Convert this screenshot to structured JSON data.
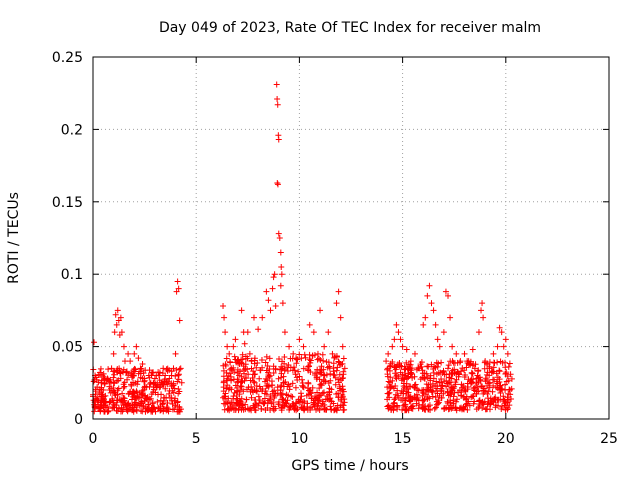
{
  "chart_data": {
    "type": "scatter",
    "title": "Day 049 of 2023, Rate Of TEC Index for receiver malm",
    "xlabel": "GPS time / hours",
    "ylabel": "ROTI / TECUs",
    "xlim": [
      0,
      25
    ],
    "ylim": [
      0,
      0.25
    ],
    "xticks": [
      "0",
      "5",
      "10",
      "15",
      "20",
      "25"
    ],
    "yticks": [
      "0",
      "0.05",
      "0.1",
      "0.15",
      "0.2",
      "0.25"
    ],
    "xtick_values": [
      0,
      5,
      10,
      15,
      20,
      25
    ],
    "ytick_values": [
      0,
      0.05,
      0.1,
      0.15,
      0.2,
      0.25
    ],
    "grid": true,
    "marker": "+",
    "color": "#ff0000",
    "series": [
      {
        "points": [
          [
            0.05,
            0.053
          ],
          [
            0.1,
            0.03
          ],
          [
            0.2,
            0.022
          ],
          [
            0.3,
            0.018
          ],
          [
            0.4,
            0.025
          ],
          [
            0.5,
            0.02
          ],
          [
            0.6,
            0.016
          ],
          [
            0.7,
            0.028
          ],
          [
            0.8,
            0.02
          ],
          [
            0.9,
            0.035
          ],
          [
            1.0,
            0.045
          ],
          [
            1.05,
            0.06
          ],
          [
            1.1,
            0.072
          ],
          [
            1.15,
            0.065
          ],
          [
            1.2,
            0.075
          ],
          [
            1.25,
            0.068
          ],
          [
            1.3,
            0.058
          ],
          [
            1.35,
            0.07
          ],
          [
            1.4,
            0.06
          ],
          [
            1.5,
            0.05
          ],
          [
            1.55,
            0.04
          ],
          [
            1.6,
            0.032
          ],
          [
            1.7,
            0.045
          ],
          [
            1.8,
            0.04
          ],
          [
            1.9,
            0.03
          ],
          [
            2.0,
            0.045
          ],
          [
            2.1,
            0.05
          ],
          [
            2.2,
            0.042
          ],
          [
            2.3,
            0.035
          ],
          [
            2.4,
            0.038
          ],
          [
            2.5,
            0.028
          ],
          [
            2.6,
            0.022
          ],
          [
            2.7,
            0.03
          ],
          [
            2.8,
            0.025
          ],
          [
            2.9,
            0.032
          ],
          [
            3.0,
            0.028
          ],
          [
            3.1,
            0.022
          ],
          [
            3.2,
            0.03
          ],
          [
            3.3,
            0.025
          ],
          [
            3.4,
            0.035
          ],
          [
            3.5,
            0.03
          ],
          [
            3.6,
            0.024
          ],
          [
            3.7,
            0.028
          ],
          [
            3.8,
            0.03
          ],
          [
            3.9,
            0.035
          ],
          [
            4.0,
            0.045
          ],
          [
            4.05,
            0.088
          ],
          [
            4.1,
            0.095
          ],
          [
            4.15,
            0.09
          ],
          [
            4.2,
            0.068
          ],
          [
            4.25,
            0.035
          ],
          [
            4.3,
            0.025
          ],
          [
            6.3,
            0.078
          ],
          [
            6.35,
            0.07
          ],
          [
            6.4,
            0.06
          ],
          [
            6.5,
            0.05
          ],
          [
            6.6,
            0.045
          ],
          [
            6.7,
            0.035
          ],
          [
            6.8,
            0.05
          ],
          [
            6.9,
            0.055
          ],
          [
            7.0,
            0.04
          ],
          [
            7.1,
            0.038
          ],
          [
            7.2,
            0.075
          ],
          [
            7.3,
            0.06
          ],
          [
            7.35,
            0.052
          ],
          [
            7.5,
            0.06
          ],
          [
            7.6,
            0.045
          ],
          [
            7.8,
            0.07
          ],
          [
            8.0,
            0.062
          ],
          [
            8.2,
            0.07
          ],
          [
            8.4,
            0.088
          ],
          [
            8.5,
            0.082
          ],
          [
            8.6,
            0.075
          ],
          [
            8.7,
            0.09
          ],
          [
            8.75,
            0.098
          ],
          [
            8.8,
            0.1
          ],
          [
            8.85,
            0.078
          ],
          [
            8.9,
            0.231
          ],
          [
            8.92,
            0.221
          ],
          [
            8.95,
            0.217
          ],
          [
            8.98,
            0.196
          ],
          [
            9.0,
            0.193
          ],
          [
            8.93,
            0.163
          ],
          [
            8.96,
            0.162
          ],
          [
            9.0,
            0.128
          ],
          [
            9.05,
            0.125
          ],
          [
            9.1,
            0.115
          ],
          [
            9.12,
            0.105
          ],
          [
            9.15,
            0.1
          ],
          [
            9.1,
            0.092
          ],
          [
            9.2,
            0.08
          ],
          [
            9.3,
            0.06
          ],
          [
            9.5,
            0.05
          ],
          [
            9.7,
            0.045
          ],
          [
            10.0,
            0.055
          ],
          [
            10.2,
            0.05
          ],
          [
            10.5,
            0.065
          ],
          [
            10.7,
            0.06
          ],
          [
            10.9,
            0.045
          ],
          [
            11.0,
            0.075
          ],
          [
            11.2,
            0.05
          ],
          [
            11.4,
            0.06
          ],
          [
            11.6,
            0.045
          ],
          [
            11.8,
            0.08
          ],
          [
            11.9,
            0.088
          ],
          [
            12.0,
            0.07
          ],
          [
            12.1,
            0.05
          ],
          [
            12.2,
            0.035
          ],
          [
            14.2,
            0.04
          ],
          [
            14.3,
            0.045
          ],
          [
            14.5,
            0.05
          ],
          [
            14.6,
            0.055
          ],
          [
            14.7,
            0.065
          ],
          [
            14.8,
            0.06
          ],
          [
            14.9,
            0.055
          ],
          [
            15.0,
            0.05
          ],
          [
            15.2,
            0.048
          ],
          [
            15.4,
            0.04
          ],
          [
            15.6,
            0.045
          ],
          [
            15.8,
            0.035
          ],
          [
            16.0,
            0.065
          ],
          [
            16.1,
            0.07
          ],
          [
            16.2,
            0.085
          ],
          [
            16.3,
            0.092
          ],
          [
            16.4,
            0.08
          ],
          [
            16.5,
            0.075
          ],
          [
            16.6,
            0.065
          ],
          [
            16.7,
            0.055
          ],
          [
            16.8,
            0.05
          ],
          [
            17.0,
            0.06
          ],
          [
            17.1,
            0.088
          ],
          [
            17.2,
            0.085
          ],
          [
            17.3,
            0.07
          ],
          [
            17.4,
            0.05
          ],
          [
            17.6,
            0.045
          ],
          [
            17.8,
            0.04
          ],
          [
            18.0,
            0.045
          ],
          [
            18.2,
            0.04
          ],
          [
            18.4,
            0.048
          ],
          [
            18.5,
            0.035
          ],
          [
            18.7,
            0.06
          ],
          [
            18.8,
            0.075
          ],
          [
            18.85,
            0.08
          ],
          [
            18.9,
            0.07
          ],
          [
            19.0,
            0.04
          ],
          [
            19.2,
            0.035
          ],
          [
            19.4,
            0.045
          ],
          [
            19.6,
            0.05
          ],
          [
            19.7,
            0.063
          ],
          [
            19.8,
            0.06
          ],
          [
            19.9,
            0.05
          ],
          [
            20.0,
            0.055
          ],
          [
            20.1,
            0.045
          ],
          [
            20.2,
            0.02
          ]
        ]
      }
    ],
    "dense_segments": [
      {
        "x_start": 0.0,
        "x_end": 4.3,
        "y_min": 0.005,
        "y_max": 0.035
      },
      {
        "x_start": 6.3,
        "x_end": 12.2,
        "y_min": 0.006,
        "y_max": 0.045
      },
      {
        "x_start": 14.2,
        "x_end": 20.3,
        "y_min": 0.006,
        "y_max": 0.04
      }
    ]
  }
}
